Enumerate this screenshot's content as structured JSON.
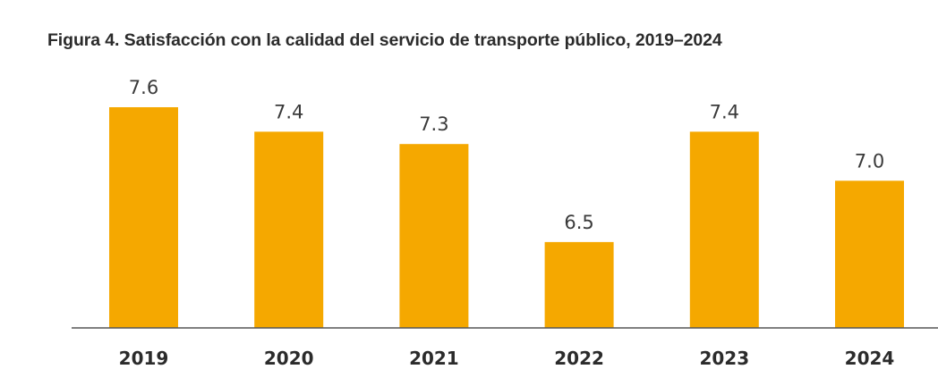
{
  "chart_data": {
    "type": "bar",
    "title": "Figura 4. Satisfacción con la calidad del servicio de transporte público, 2019–2024",
    "categories": [
      "2019",
      "2020",
      "2021",
      "2022",
      "2023",
      "2024"
    ],
    "values": [
      7.6,
      7.4,
      7.3,
      6.5,
      7.4,
      7.0
    ],
    "value_labels": [
      "7.6",
      "7.4",
      "7.3",
      "6.5",
      "7.4",
      "7.0"
    ],
    "xlabel": "",
    "ylabel": "",
    "ylim": [
      5.8,
      7.6
    ],
    "grid": false,
    "legend": "none",
    "bar_color": "#F5A800",
    "axis_color": "#555555"
  }
}
